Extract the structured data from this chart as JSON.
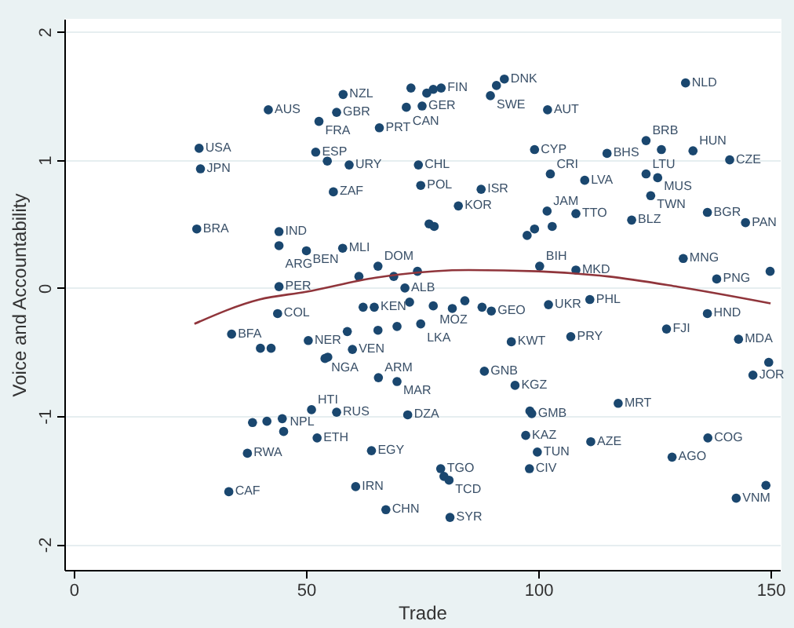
{
  "chart_data": {
    "type": "scatter",
    "xlabel": "Trade",
    "ylabel": "Voice and Accountability",
    "xlim": [
      -2,
      152
    ],
    "ylim": [
      -2.2,
      2.1
    ],
    "xticks": [
      0,
      50,
      100,
      150
    ],
    "yticks": [
      -2,
      -1,
      0,
      1,
      2
    ],
    "grid": "y",
    "marker": "circle",
    "series": [
      {
        "color": "#1a476f",
        "x": [
          41.9,
          58.0,
          56.6,
          52.8,
          65.8,
          27.0,
          27.3,
          52.1,
          54.6,
          59.3,
          55.9,
          26.5,
          44.2,
          44.2,
          50.1,
          57.9,
          65.5,
          61.4,
          44.2,
          72.6,
          71.6,
          74.2,
          74.7,
          76.0,
          77.4,
          79.1,
          75.0,
          92.7,
          91.0,
          89.7,
          102.0,
          131.7,
          99.2,
          114.8,
          123.2,
          126.5,
          133.3,
          141.2,
          87.7,
          82.8,
          102.6,
          110.0,
          123.2,
          125.7,
          124.2,
          136.4,
          144.6,
          120.1,
          101.9,
          108.1,
          76.5,
          77.6,
          103.0,
          99.2,
          97.6,
          131.2,
          100.3,
          108.1,
          138.4,
          149.9,
          43.9,
          34.0,
          40.2,
          42.5,
          50.5,
          54.7,
          54.1,
          60.0,
          58.9,
          65.6,
          69.6,
          51.2,
          56.6,
          38.5,
          41.6,
          44.9,
          45.2,
          52.4,
          71.9,
          37.4,
          64.1,
          33.4,
          60.7,
          67.2,
          64.7,
          62.3,
          102.2,
          111.1,
          89.9,
          87.9,
          136.4,
          127.6,
          94.2,
          107.0,
          143.1,
          149.6,
          146.2,
          88.4,
          95.0,
          117.2,
          98.2,
          98.6,
          97.3,
          111.3,
          99.8,
          98.1,
          136.5,
          128.8,
          79.0,
          79.7,
          80.8,
          81.0,
          142.6,
          149.0,
          68.9,
          71.3,
          74.0,
          72.3,
          77.4,
          74.7,
          69.6,
          65.5,
          81.5,
          84.2
        ],
        "values": [
          1.39,
          1.51,
          1.37,
          1.3,
          1.25,
          1.09,
          0.93,
          1.06,
          0.99,
          0.96,
          0.75,
          0.46,
          0.44,
          0.33,
          0.29,
          0.31,
          0.17,
          0.09,
          0.01,
          1.56,
          1.41,
          0.96,
          0.8,
          1.52,
          1.55,
          1.56,
          1.42,
          1.63,
          1.58,
          1.5,
          1.39,
          1.6,
          1.08,
          1.05,
          1.15,
          1.08,
          1.07,
          1.0,
          0.77,
          0.64,
          0.89,
          0.84,
          0.89,
          0.86,
          0.72,
          0.59,
          0.51,
          0.53,
          0.6,
          0.58,
          0.5,
          0.48,
          0.48,
          0.46,
          0.41,
          0.23,
          0.17,
          0.14,
          0.07,
          0.13,
          -0.2,
          -0.36,
          -0.47,
          -0.47,
          -0.41,
          -0.54,
          -0.55,
          -0.48,
          -0.34,
          -0.7,
          -0.73,
          -0.95,
          -0.97,
          -1.05,
          -1.04,
          -1.02,
          -1.12,
          -1.17,
          -0.99,
          -1.29,
          -1.27,
          -1.59,
          -1.55,
          -1.73,
          -0.15,
          -0.15,
          -0.13,
          -0.09,
          -0.18,
          -0.15,
          -0.2,
          -0.32,
          -0.42,
          -0.38,
          -0.4,
          -0.58,
          -0.68,
          -0.65,
          -0.76,
          -0.9,
          -0.96,
          -0.98,
          -1.15,
          -1.2,
          -1.28,
          -1.41,
          -1.17,
          -1.32,
          -1.41,
          -1.47,
          -1.5,
          -1.79,
          -1.64,
          -1.54,
          0.09,
          0.0,
          0.13,
          -0.11,
          -0.14,
          -0.28,
          -0.3,
          -0.33,
          -0.16,
          -0.1
        ]
      },
      {
        "type": "line",
        "marker": "none",
        "color": "#90353b",
        "x": [
          26,
          40,
          50,
          65,
          85,
          100,
          115,
          130,
          150
        ],
        "values": [
          -0.28,
          -0.09,
          -0.03,
          0.08,
          0.14,
          0.13,
          0.09,
          0.01,
          -0.12
        ]
      }
    ],
    "annotations": [
      {
        "text": "AUS",
        "x": 41.9,
        "y": 1.39
      },
      {
        "text": "NZL",
        "x": 58.0,
        "y": 1.51
      },
      {
        "text": "GBR",
        "x": 56.6,
        "y": 1.37
      },
      {
        "text": "FRA",
        "x": 52.8,
        "y": 1.3
      },
      {
        "text": "PRT",
        "x": 65.8,
        "y": 1.25
      },
      {
        "text": "USA",
        "x": 27.0,
        "y": 1.09
      },
      {
        "text": "JPN",
        "x": 27.3,
        "y": 0.93
      },
      {
        "text": "ESP",
        "x": 52.1,
        "y": 1.06
      },
      {
        "text": "URY",
        "x": 59.3,
        "y": 0.96
      },
      {
        "text": "ZAF",
        "x": 55.9,
        "y": 0.75
      },
      {
        "text": "BRA",
        "x": 26.5,
        "y": 0.46
      },
      {
        "text": "IND",
        "x": 44.2,
        "y": 0.44
      },
      {
        "text": "ARG",
        "x": 44.2,
        "y": 0.33
      },
      {
        "text": "BEN",
        "x": 50.1,
        "y": 0.29
      },
      {
        "text": "MLI",
        "x": 57.9,
        "y": 0.31
      },
      {
        "text": "DOM",
        "x": 65.5,
        "y": 0.17
      },
      {
        "text": "PER",
        "x": 44.2,
        "y": 0.01
      },
      {
        "text": "CAN",
        "x": 71.6,
        "y": 1.41
      },
      {
        "text": "CHL",
        "x": 74.2,
        "y": 0.96
      },
      {
        "text": "POL",
        "x": 74.7,
        "y": 0.8
      },
      {
        "text": "FIN",
        "x": 79.1,
        "y": 1.56
      },
      {
        "text": "GER",
        "x": 75.0,
        "y": 1.42
      },
      {
        "text": "DNK",
        "x": 92.7,
        "y": 1.63
      },
      {
        "text": "SWE",
        "x": 89.7,
        "y": 1.5
      },
      {
        "text": "AUT",
        "x": 102.0,
        "y": 1.39
      },
      {
        "text": "NLD",
        "x": 131.7,
        "y": 1.6
      },
      {
        "text": "CYP",
        "x": 99.2,
        "y": 1.08
      },
      {
        "text": "BHS",
        "x": 114.8,
        "y": 1.05
      },
      {
        "text": "BRB",
        "x": 123.2,
        "y": 1.15
      },
      {
        "text": "HUN",
        "x": 133.3,
        "y": 1.07
      },
      {
        "text": "CZE",
        "x": 141.2,
        "y": 1.0
      },
      {
        "text": "ISR",
        "x": 87.7,
        "y": 0.77
      },
      {
        "text": "KOR",
        "x": 82.8,
        "y": 0.64
      },
      {
        "text": "CRI",
        "x": 102.6,
        "y": 0.89
      },
      {
        "text": "LVA",
        "x": 110.0,
        "y": 0.84
      },
      {
        "text": "LTU",
        "x": 123.2,
        "y": 0.89
      },
      {
        "text": "MUS",
        "x": 125.7,
        "y": 0.86
      },
      {
        "text": "TWN",
        "x": 124.2,
        "y": 0.72
      },
      {
        "text": "BGR",
        "x": 136.4,
        "y": 0.59
      },
      {
        "text": "PAN",
        "x": 144.6,
        "y": 0.51
      },
      {
        "text": "BLZ",
        "x": 120.1,
        "y": 0.53
      },
      {
        "text": "JAM",
        "x": 101.9,
        "y": 0.6
      },
      {
        "text": "TTO",
        "x": 108.1,
        "y": 0.58
      },
      {
        "text": "MNG",
        "x": 131.2,
        "y": 0.23
      },
      {
        "text": "BIH",
        "x": 100.3,
        "y": 0.17
      },
      {
        "text": "MKD",
        "x": 108.1,
        "y": 0.14
      },
      {
        "text": "PNG",
        "x": 138.4,
        "y": 0.07
      },
      {
        "text": "COL",
        "x": 43.9,
        "y": -0.2
      },
      {
        "text": "BFA",
        "x": 34.0,
        "y": -0.36
      },
      {
        "text": "NER",
        "x": 50.5,
        "y": -0.41
      },
      {
        "text": "NGA",
        "x": 54.1,
        "y": -0.55
      },
      {
        "text": "VEN",
        "x": 60.0,
        "y": -0.48
      },
      {
        "text": "ARM",
        "x": 65.6,
        "y": -0.7
      },
      {
        "text": "MAR",
        "x": 69.6,
        "y": -0.73
      },
      {
        "text": "HTI",
        "x": 51.2,
        "y": -0.95
      },
      {
        "text": "RUS",
        "x": 56.6,
        "y": -0.97
      },
      {
        "text": "NPL",
        "x": 45.2,
        "y": -1.12
      },
      {
        "text": "ETH",
        "x": 52.4,
        "y": -1.17
      },
      {
        "text": "DZA",
        "x": 71.9,
        "y": -0.99
      },
      {
        "text": "RWA",
        "x": 37.4,
        "y": -1.29
      },
      {
        "text": "EGY",
        "x": 64.1,
        "y": -1.27
      },
      {
        "text": "CAF",
        "x": 33.4,
        "y": -1.59
      },
      {
        "text": "IRN",
        "x": 60.7,
        "y": -1.55
      },
      {
        "text": "CHN",
        "x": 67.2,
        "y": -1.73
      },
      {
        "text": "KEN",
        "x": 64.7,
        "y": -0.15
      },
      {
        "text": "UKR",
        "x": 102.2,
        "y": -0.13
      },
      {
        "text": "PHL",
        "x": 111.1,
        "y": -0.09
      },
      {
        "text": "GEO",
        "x": 89.9,
        "y": -0.18
      },
      {
        "text": "HND",
        "x": 136.4,
        "y": -0.2
      },
      {
        "text": "FJI",
        "x": 127.6,
        "y": -0.32
      },
      {
        "text": "KWT",
        "x": 94.2,
        "y": -0.42
      },
      {
        "text": "PRY",
        "x": 107.0,
        "y": -0.38
      },
      {
        "text": "MDA",
        "x": 143.1,
        "y": -0.4
      },
      {
        "text": "JOR",
        "x": 146.2,
        "y": -0.68
      },
      {
        "text": "GNB",
        "x": 88.4,
        "y": -0.65
      },
      {
        "text": "KGZ",
        "x": 95.0,
        "y": -0.76
      },
      {
        "text": "MRT",
        "x": 117.2,
        "y": -0.9
      },
      {
        "text": "GMB",
        "x": 98.6,
        "y": -0.98
      },
      {
        "text": "KAZ",
        "x": 97.3,
        "y": -1.15
      },
      {
        "text": "AZE",
        "x": 111.3,
        "y": -1.2
      },
      {
        "text": "TUN",
        "x": 99.8,
        "y": -1.28
      },
      {
        "text": "CIV",
        "x": 98.1,
        "y": -1.41
      },
      {
        "text": "COG",
        "x": 136.5,
        "y": -1.17
      },
      {
        "text": "AGO",
        "x": 128.8,
        "y": -1.32
      },
      {
        "text": "TGO",
        "x": 79.0,
        "y": -1.41
      },
      {
        "text": "TCD",
        "x": 80.8,
        "y": -1.5
      },
      {
        "text": "SYR",
        "x": 81.0,
        "y": -1.79
      },
      {
        "text": "VNM",
        "x": 142.6,
        "y": -1.64
      },
      {
        "text": "ALB",
        "x": 71.3,
        "y": 0.0
      },
      {
        "text": "MOZ",
        "x": 77.4,
        "y": -0.14
      },
      {
        "text": "LKA",
        "x": 74.7,
        "y": -0.28
      }
    ]
  }
}
